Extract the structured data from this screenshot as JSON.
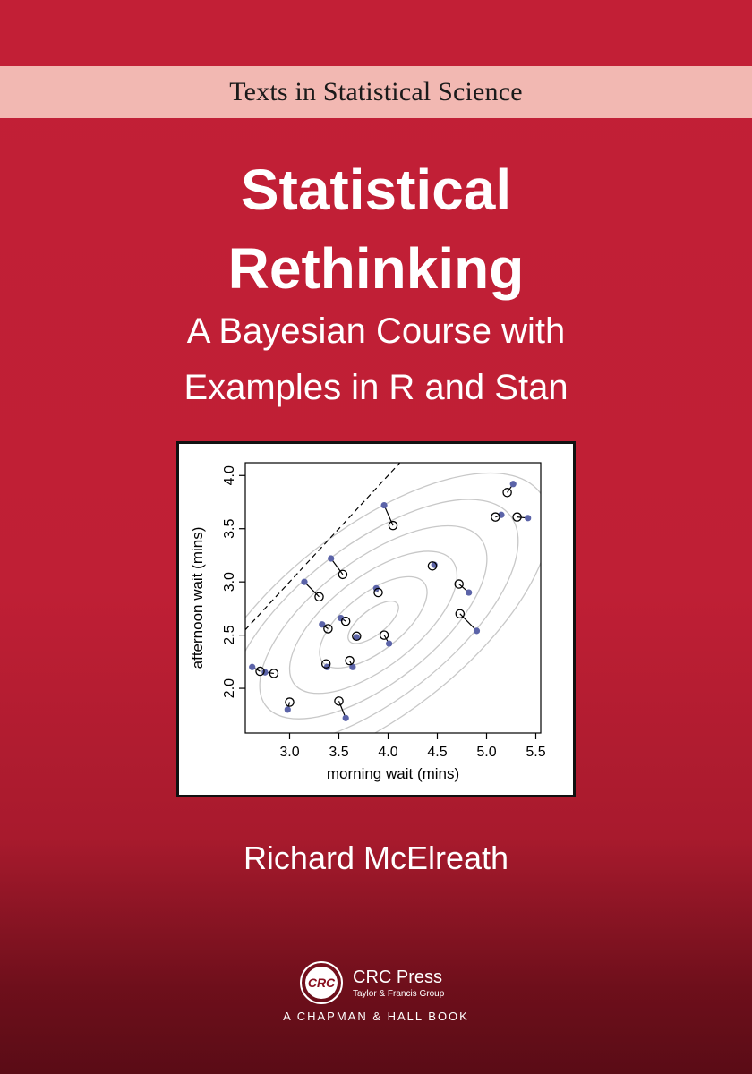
{
  "series": {
    "name": "Texts in Statistical Science"
  },
  "book": {
    "title_line1": "Statistical",
    "title_line2": "Rethinking",
    "subtitle_line1": "A Bayesian Course with",
    "subtitle_line2": "Examples in R and Stan",
    "author": "Richard McElreath"
  },
  "publisher": {
    "logo_text": "CRC",
    "name": "CRC Press",
    "group": "Taylor & Francis Group",
    "imprint": "A CHAPMAN & HALL BOOK"
  },
  "colors": {
    "background": "#c21f36",
    "band": "#f2b8b2",
    "point_filled": "#5b63a8"
  },
  "chart_data": {
    "type": "scatter",
    "xlabel": "morning wait (mins)",
    "ylabel": "afternoon wait (mins)",
    "xlim": [
      2.55,
      5.55
    ],
    "ylim": [
      1.58,
      4.12
    ],
    "xticks": [
      "3.0",
      "3.5",
      "4.0",
      "4.5",
      "5.0",
      "5.5"
    ],
    "yticks": [
      "2.0",
      "2.5",
      "3.0",
      "3.5",
      "4.0"
    ],
    "series": [
      {
        "marker": "filled",
        "points": [
          [
            2.62,
            2.2
          ],
          [
            2.75,
            2.15
          ],
          [
            2.98,
            1.8
          ],
          [
            3.15,
            3.0
          ],
          [
            3.33,
            2.6
          ],
          [
            3.38,
            2.2
          ],
          [
            3.42,
            3.22
          ],
          [
            3.52,
            2.66
          ],
          [
            3.57,
            1.72
          ],
          [
            3.64,
            2.2
          ],
          [
            3.68,
            2.48
          ],
          [
            3.88,
            2.94
          ],
          [
            3.96,
            3.72
          ],
          [
            4.01,
            2.42
          ],
          [
            4.47,
            3.16
          ],
          [
            4.82,
            2.9
          ],
          [
            4.9,
            2.54
          ],
          [
            5.15,
            3.63
          ],
          [
            5.27,
            3.92
          ],
          [
            5.42,
            3.6
          ]
        ]
      },
      {
        "marker": "open",
        "points": [
          [
            2.7,
            2.16
          ],
          [
            2.84,
            2.14
          ],
          [
            3.0,
            1.87
          ],
          [
            3.3,
            2.86
          ],
          [
            3.39,
            2.56
          ],
          [
            3.37,
            2.23
          ],
          [
            3.54,
            3.07
          ],
          [
            3.57,
            2.63
          ],
          [
            3.5,
            1.88
          ],
          [
            3.61,
            2.26
          ],
          [
            3.68,
            2.49
          ],
          [
            3.9,
            2.9
          ],
          [
            4.05,
            3.53
          ],
          [
            3.96,
            2.5
          ],
          [
            4.45,
            3.15
          ],
          [
            4.72,
            2.98
          ],
          [
            4.73,
            2.7
          ],
          [
            5.09,
            3.61
          ],
          [
            5.21,
            3.84
          ],
          [
            5.31,
            3.61
          ]
        ]
      }
    ],
    "reference_line": {
      "style": "dashed",
      "slope": 1,
      "intercept": 0
    }
  }
}
